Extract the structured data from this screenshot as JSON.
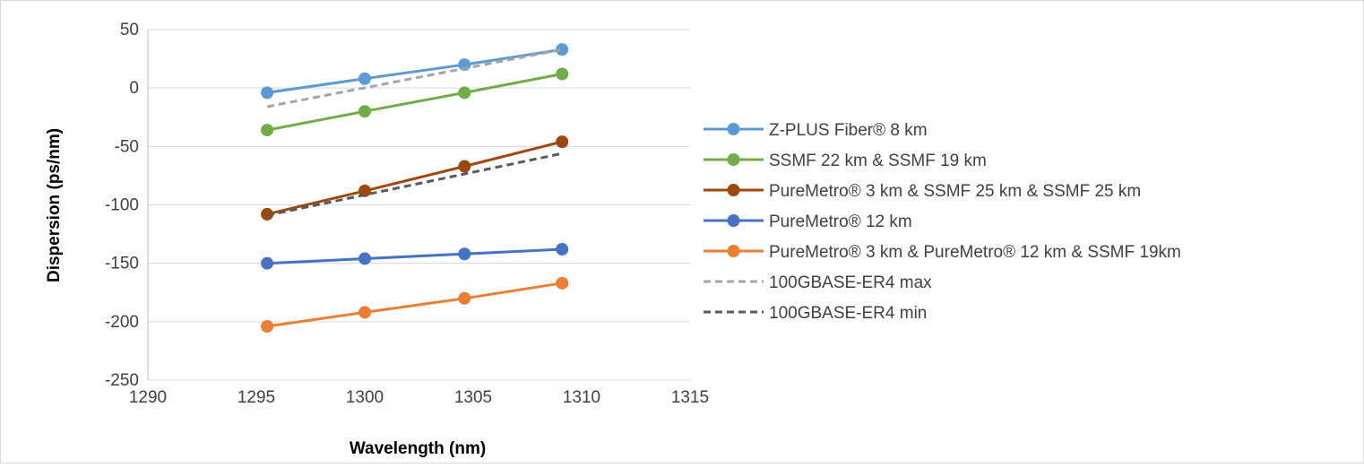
{
  "chart_data": {
    "type": "line",
    "title": "",
    "xlabel": "Wavelength (nm)",
    "ylabel": "Dispersion (ps/nm)",
    "xlim": [
      1290,
      1315
    ],
    "ylim": [
      -250,
      50
    ],
    "x_ticks": [
      "1290",
      "1295",
      "1300",
      "1305",
      "1310",
      "1315"
    ],
    "y_ticks": [
      "50",
      "0",
      "-50",
      "-100",
      "-150",
      "-200",
      "-250"
    ],
    "grid": "horizontal",
    "legend_position": "right",
    "series": [
      {
        "name": "Z-PLUS Fiber® 8 km",
        "color": "#5B9BD5",
        "style": "solid",
        "markers": true,
        "x": [
          1295.5,
          1300,
          1304.6,
          1309.1
        ],
        "y": [
          -4,
          8,
          20,
          33
        ]
      },
      {
        "name": "SSMF 22 km & SSMF 19 km",
        "color": "#70AD47",
        "style": "solid",
        "markers": true,
        "x": [
          1295.5,
          1300,
          1304.6,
          1309.1
        ],
        "y": [
          -36,
          -20,
          -4,
          12
        ]
      },
      {
        "name": "PureMetro® 3 km & SSMF 25 km & SSMF 25 km",
        "color": "#9E480E",
        "style": "solid",
        "markers": true,
        "x": [
          1295.5,
          1300,
          1304.6,
          1309.1
        ],
        "y": [
          -108,
          -88,
          -67,
          -46
        ]
      },
      {
        "name": "PureMetro® 12 km",
        "color": "#4472C4",
        "style": "solid",
        "markers": true,
        "x": [
          1295.5,
          1300,
          1304.6,
          1309.1
        ],
        "y": [
          -150,
          -146,
          -142,
          -138
        ]
      },
      {
        "name": "PureMetro® 3 km & PureMetro® 12 km & SSMF 19km",
        "color": "#ED7D31",
        "style": "solid",
        "markers": true,
        "x": [
          1295.5,
          1300,
          1304.6,
          1309.1
        ],
        "y": [
          -204,
          -192,
          -180,
          -167
        ]
      },
      {
        "name": "100GBASE-ER4 max",
        "color": "#A5A5A5",
        "style": "dashed",
        "markers": false,
        "x": [
          1295.5,
          1309.1
        ],
        "y": [
          -16,
          33
        ]
      },
      {
        "name": "100GBASE-ER4 min",
        "color": "#595959",
        "style": "dashed",
        "markers": false,
        "x": [
          1295.5,
          1309.1
        ],
        "y": [
          -109,
          -56
        ]
      }
    ]
  }
}
